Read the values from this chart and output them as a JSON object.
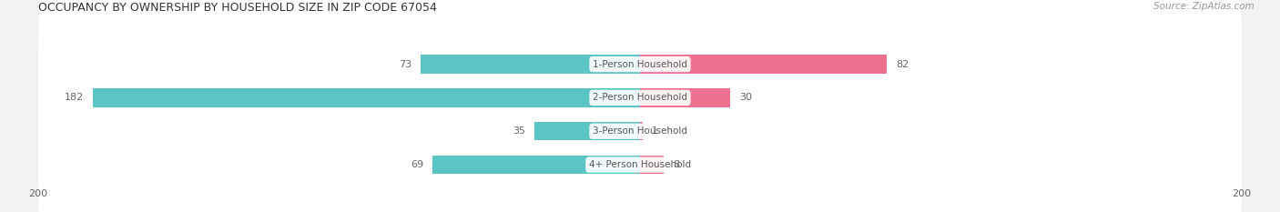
{
  "title": "OCCUPANCY BY OWNERSHIP BY HOUSEHOLD SIZE IN ZIP CODE 67054",
  "source": "Source: ZipAtlas.com",
  "categories": [
    "1-Person Household",
    "2-Person Household",
    "3-Person Household",
    "4+ Person Household"
  ],
  "owner_values": [
    73,
    182,
    35,
    69
  ],
  "renter_values": [
    82,
    30,
    1,
    8
  ],
  "owner_color": "#5bc4c4",
  "renter_color": "#f07090",
  "bg_color": "#f2f2f2",
  "row_bg_color": "#e8e8e8",
  "axis_max": 200,
  "label_color": "#666666",
  "title_color": "#333333",
  "center_label_color": "#555555"
}
